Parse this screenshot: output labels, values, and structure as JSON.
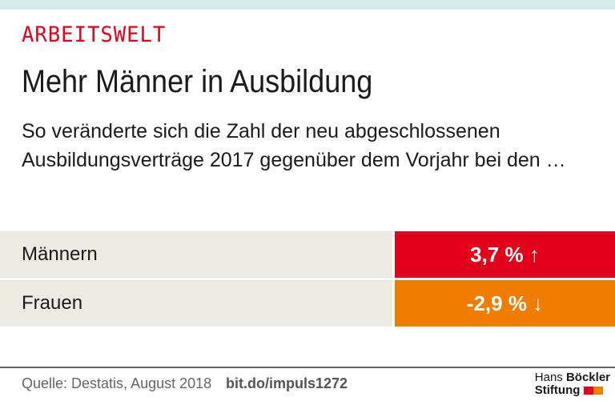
{
  "kicker": "ARBEITSWELT",
  "title": "Mehr Männer in Ausbildung",
  "subtitle": "So veränderte sich die Zahl der neu abgeschlossenen Ausbildungsverträge 2017 gegenüber dem Vorjahr bei den …",
  "rows": [
    {
      "label": "Männern",
      "value": "3,7 %",
      "arrow": "↑",
      "color": "#e2001a"
    },
    {
      "label": "Frauen",
      "value": "-2,9 %",
      "arrow": "↓",
      "color": "#f07d00"
    }
  ],
  "footer": {
    "source": "Quelle: Destatis, August 2018",
    "link": "bit.do/impuls1272",
    "logo_line1a": "Hans",
    "logo_line1b": "Böckler",
    "logo_line2": "Stiftung"
  },
  "colors": {
    "topbar": "#d7e9ef",
    "red": "#e2001a",
    "orange": "#f07d00",
    "label_bg": "#ecebe1"
  }
}
